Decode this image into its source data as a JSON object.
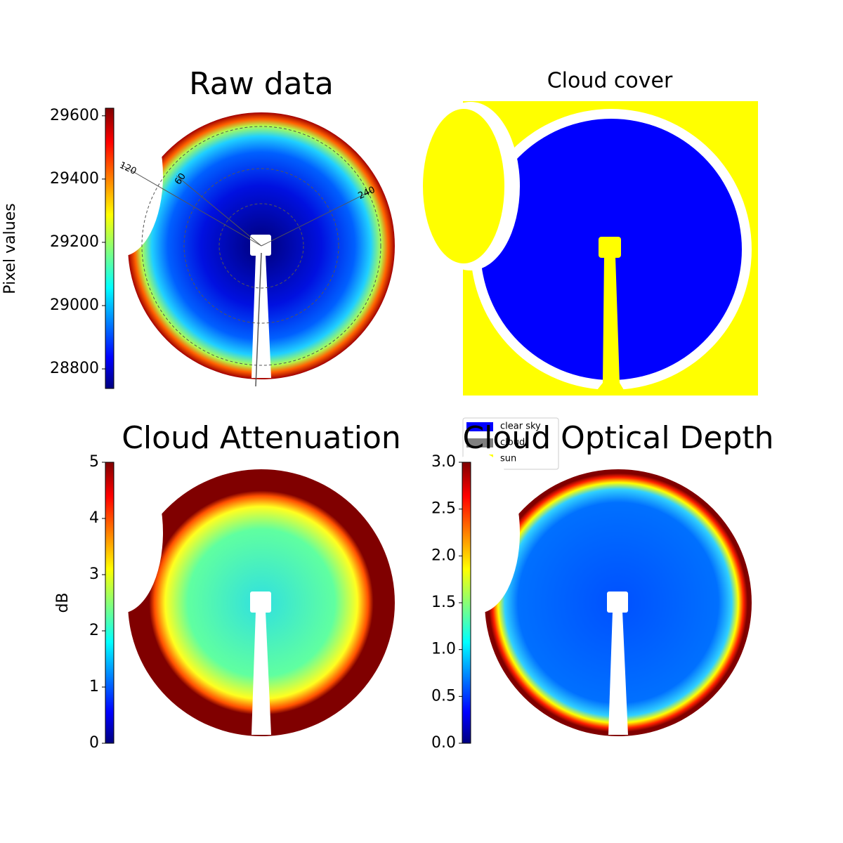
{
  "chart_data": [
    {
      "type": "image",
      "title": "Raw data",
      "colorbar_label": "Pixel values",
      "colormap": "jet",
      "clim": [
        28738,
        29624
      ],
      "cticks": [
        28800,
        29000,
        29200,
        29400,
        29600
      ],
      "annotations": [
        "120",
        "60",
        "240"
      ]
    },
    {
      "type": "image",
      "title": "Cloud cover",
      "series": [
        {
          "name": "clear sky",
          "color": "#0000ff"
        },
        {
          "name": "cloud",
          "color": "#808080"
        },
        {
          "name": "sun",
          "color": "#ffff00"
        }
      ]
    },
    {
      "type": "image",
      "title": "Cloud Attenuation",
      "colorbar_label": "dB",
      "colormap": "jet",
      "clim": [
        0,
        5
      ],
      "cticks": [
        0,
        1,
        2,
        3,
        4,
        5
      ]
    },
    {
      "type": "image",
      "title": "Cloud Optical Depth",
      "colormap": "jet",
      "clim": [
        0,
        3
      ],
      "cticks": [
        {
          "value": 0,
          "label": "0.0"
        },
        {
          "value": 0.5,
          "label": "0.5"
        },
        {
          "value": 1,
          "label": "1.0"
        },
        {
          "value": 1.5,
          "label": "1.5"
        },
        {
          "value": 2,
          "label": "2.0"
        },
        {
          "value": 2.5,
          "label": "2.5"
        },
        {
          "value": 3,
          "label": "3.0"
        }
      ]
    }
  ]
}
